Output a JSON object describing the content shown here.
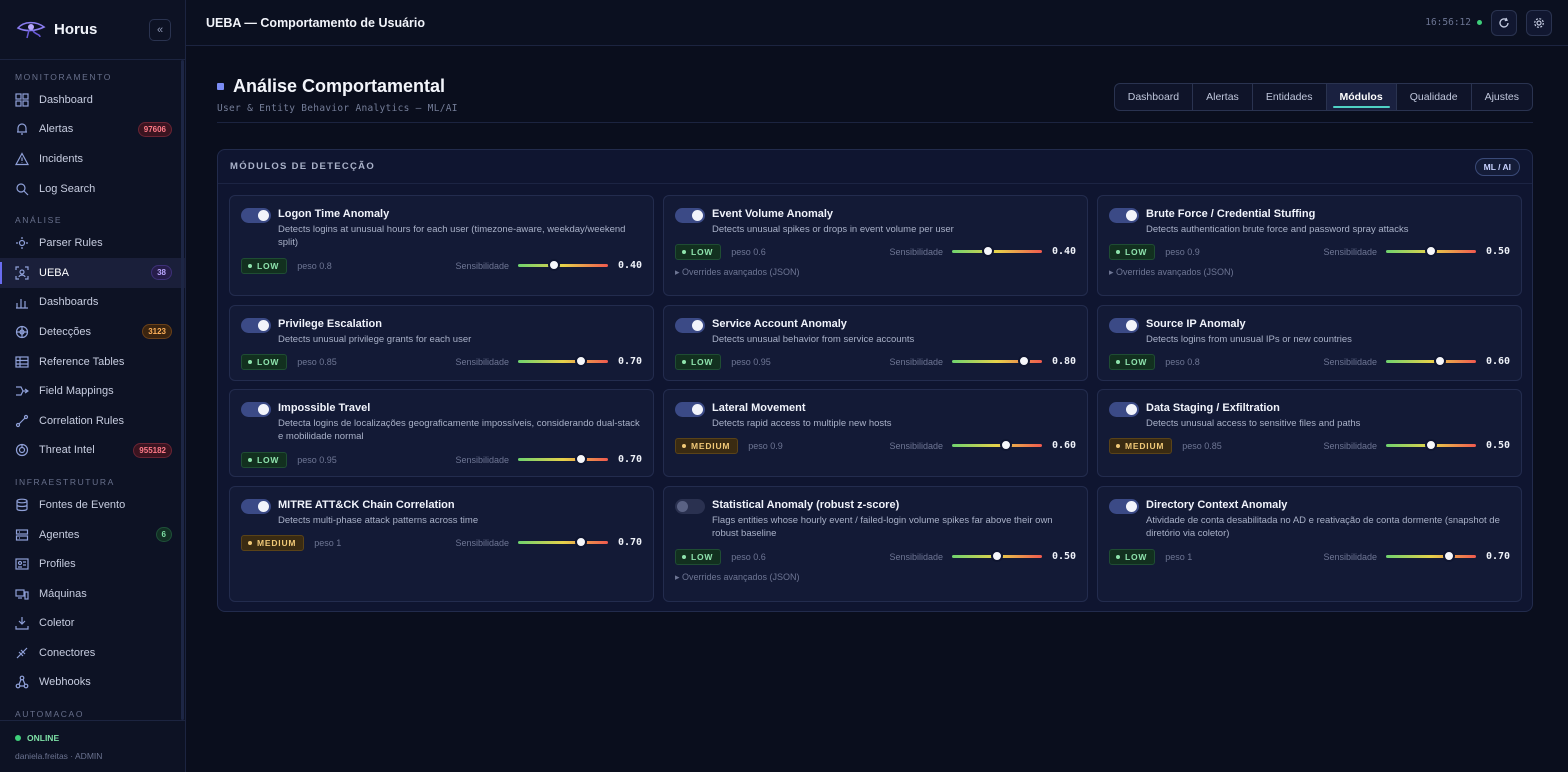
{
  "app": {
    "name": "Horus",
    "collapse_label": "«"
  },
  "sidebar": {
    "sections": [
      {
        "title": "MONITORAMENTO",
        "items": [
          {
            "label": "Dashboard",
            "icon": "grid-icon"
          },
          {
            "label": "Alertas",
            "icon": "bell-icon",
            "badge": "97606",
            "badge_tone": "red"
          },
          {
            "label": "Incidents",
            "icon": "warning-icon"
          },
          {
            "label": "Log Search",
            "icon": "search-icon"
          }
        ]
      },
      {
        "title": "ANÁLISE",
        "items": [
          {
            "label": "Parser Rules",
            "icon": "parser-icon"
          },
          {
            "label": "UEBA",
            "icon": "ueba-icon",
            "badge": "38",
            "badge_tone": "purple",
            "active": true
          },
          {
            "label": "Dashboards",
            "icon": "bar-chart-icon"
          },
          {
            "label": "Detecções",
            "icon": "target-icon",
            "badge": "3123",
            "badge_tone": "orange"
          },
          {
            "label": "Reference Tables",
            "icon": "table-icon"
          },
          {
            "label": "Field Mappings",
            "icon": "mapping-icon"
          },
          {
            "label": "Correlation Rules",
            "icon": "correlation-icon"
          },
          {
            "label": "Threat Intel",
            "icon": "threat-icon",
            "badge": "955182",
            "badge_tone": "red"
          }
        ]
      },
      {
        "title": "INFRAESTRUTURA",
        "items": [
          {
            "label": "Fontes de Evento",
            "icon": "database-icon"
          },
          {
            "label": "Agentes",
            "icon": "server-icon",
            "badge": "6",
            "badge_tone": "green"
          },
          {
            "label": "Profiles",
            "icon": "profile-icon"
          },
          {
            "label": "Máquinas",
            "icon": "machines-icon"
          },
          {
            "label": "Coletor",
            "icon": "download-icon"
          },
          {
            "label": "Conectores",
            "icon": "plug-icon"
          },
          {
            "label": "Webhooks",
            "icon": "webhook-icon"
          }
        ]
      },
      {
        "title": "AUTOMACAO",
        "items": []
      }
    ],
    "status": "ONLINE",
    "user": "daniela.freitas · ADMIN"
  },
  "topbar": {
    "title": "UEBA — Comportamento de Usuário",
    "clock": "16:56:12"
  },
  "page": {
    "title": "Análise Comportamental",
    "subtitle": "User & Entity Behavior Analytics — ML/AI",
    "tabs": [
      "Dashboard",
      "Alertas",
      "Entidades",
      "Módulos",
      "Qualidade",
      "Ajustes"
    ],
    "active_tab": "Módulos"
  },
  "panel": {
    "title": "MÓDULOS DE DETECÇÃO",
    "badge": "ML / AI",
    "sens_label": "Sensibilidade",
    "overrides_label": "▸ Overrides avançados (JSON)",
    "modules": [
      {
        "title": "Logon Time Anomaly",
        "desc": "Detects logins at unusual hours for each user (timezone-aware, weekday/weekend split)",
        "level": "LOW",
        "peso": "peso 0.8",
        "value": "0.40",
        "fraction": 0.4,
        "enabled": true,
        "overrides": false
      },
      {
        "title": "Event Volume Anomaly",
        "desc": "Detects unusual spikes or drops in event volume per user",
        "level": "LOW",
        "peso": "peso 0.6",
        "value": "0.40",
        "fraction": 0.4,
        "enabled": true,
        "overrides": true
      },
      {
        "title": "Brute Force / Credential Stuffing",
        "desc": "Detects authentication brute force and password spray attacks",
        "level": "LOW",
        "peso": "peso 0.9",
        "value": "0.50",
        "fraction": 0.5,
        "enabled": true,
        "overrides": true
      },
      {
        "title": "Privilege Escalation",
        "desc": "Detects unusual privilege grants for each user",
        "level": "LOW",
        "peso": "peso 0.85",
        "value": "0.70",
        "fraction": 0.7,
        "enabled": true,
        "overrides": false
      },
      {
        "title": "Service Account Anomaly",
        "desc": "Detects unusual behavior from service accounts",
        "level": "LOW",
        "peso": "peso 0.95",
        "value": "0.80",
        "fraction": 0.8,
        "enabled": true,
        "overrides": false
      },
      {
        "title": "Source IP Anomaly",
        "desc": "Detects logins from unusual IPs or new countries",
        "level": "LOW",
        "peso": "peso 0.8",
        "value": "0.60",
        "fraction": 0.6,
        "enabled": true,
        "overrides": false
      },
      {
        "title": "Impossible Travel",
        "desc": "Detecta logins de localizações geograficamente impossíveis, considerando dual-stack e mobilidade normal",
        "level": "LOW",
        "peso": "peso 0.95",
        "value": "0.70",
        "fraction": 0.7,
        "enabled": true,
        "overrides": false
      },
      {
        "title": "Lateral Movement",
        "desc": "Detects rapid access to multiple new hosts",
        "level": "MEDIUM",
        "peso": "peso 0.9",
        "value": "0.60",
        "fraction": 0.6,
        "enabled": true,
        "overrides": false
      },
      {
        "title": "Data Staging / Exfiltration",
        "desc": "Detects unusual access to sensitive files and paths",
        "level": "MEDIUM",
        "peso": "peso 0.85",
        "value": "0.50",
        "fraction": 0.5,
        "enabled": true,
        "overrides": false
      },
      {
        "title": "MITRE ATT&CK Chain Correlation",
        "desc": "Detects multi-phase attack patterns across time",
        "level": "MEDIUM",
        "peso": "peso 1",
        "value": "0.70",
        "fraction": 0.7,
        "enabled": true,
        "overrides": false
      },
      {
        "title": "Statistical Anomaly (robust z-score)",
        "desc": "Flags entities whose hourly event / failed-login volume spikes far above their own robust baseline",
        "level": "LOW",
        "peso": "peso 0.6",
        "value": "0.50",
        "fraction": 0.5,
        "enabled": false,
        "overrides": true
      },
      {
        "title": "Directory Context Anomaly",
        "desc": "Atividade de conta desabilitada no AD e reativação de conta dormente (snapshot de diretório via coletor)",
        "level": "LOW",
        "peso": "peso 1",
        "value": "0.70",
        "fraction": 0.7,
        "enabled": true,
        "overrides": false
      }
    ]
  }
}
